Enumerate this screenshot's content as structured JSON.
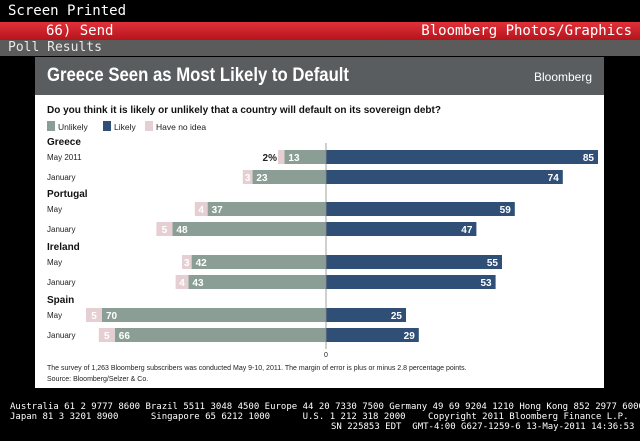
{
  "terminal": {
    "status_text": "Screen Printed",
    "send_label": "66) Send",
    "section_label": "Bloomberg Photos/Graphics",
    "poll_label": "Poll Results"
  },
  "footer": {
    "line1": "Australia 61 2 9777 8600 Brazil 5511 3048 4500 Europe 44 20 7330 7500 Germany 49 69 9204 1210 Hong Kong 852 2977 6000",
    "line2_left": "Japan 81 3 3201 8900      Singapore 65 6212 1000      U.S. 1 212 318 2000",
    "line2_right": "Copyright 2011 Bloomberg Finance L.P.",
    "line3": "SN 225853 EDT  GMT-4:00 G627-1259-6 13-May-2011 14:36:53"
  },
  "colors": {
    "unlikely": "#8a9e96",
    "likely": "#304f76",
    "no_idea": "#e6cfd3",
    "header": "#5a5d60"
  },
  "chart_data": {
    "type": "bar",
    "title": "Greece Seen as Most Likely to Default",
    "brand": "Bloomberg",
    "question": "Do you think it is likely or unlikely that a country will default on its sovereign debt?",
    "legend": [
      {
        "key": "unlikely",
        "label": "Unlikely"
      },
      {
        "key": "likely",
        "label": "Likely"
      },
      {
        "key": "no_idea",
        "label": "Have no idea"
      }
    ],
    "zero_label": "0",
    "groups": [
      {
        "country": "Greece",
        "rows": [
          {
            "label": "May 2011",
            "unlikely": 13,
            "likely": 85,
            "no_idea": 2,
            "no_idea_label": "2%"
          },
          {
            "label": "January",
            "unlikely": 23,
            "likely": 74,
            "no_idea": 3,
            "no_idea_label": "3"
          }
        ]
      },
      {
        "country": "Portugal",
        "rows": [
          {
            "label": "May",
            "unlikely": 37,
            "likely": 59,
            "no_idea": 4,
            "no_idea_label": "4"
          },
          {
            "label": "January",
            "unlikely": 48,
            "likely": 47,
            "no_idea": 5,
            "no_idea_label": "5"
          }
        ]
      },
      {
        "country": "Ireland",
        "rows": [
          {
            "label": "May",
            "unlikely": 42,
            "likely": 55,
            "no_idea": 3,
            "no_idea_label": "3"
          },
          {
            "label": "January",
            "unlikely": 43,
            "likely": 53,
            "no_idea": 4,
            "no_idea_label": "4"
          }
        ]
      },
      {
        "country": "Spain",
        "rows": [
          {
            "label": "May",
            "unlikely": 70,
            "likely": 25,
            "no_idea": 5,
            "no_idea_label": "5"
          },
          {
            "label": "January",
            "unlikely": 66,
            "likely": 29,
            "no_idea": 5,
            "no_idea_label": "5"
          }
        ]
      }
    ],
    "note": "The survey of 1,263 Bloomberg subscribers was conducted May 9-10, 2011. The margin of error is plus or minus 2.8 percentage points.",
    "source": "Source: Bloomberg/Selzer & Co."
  }
}
